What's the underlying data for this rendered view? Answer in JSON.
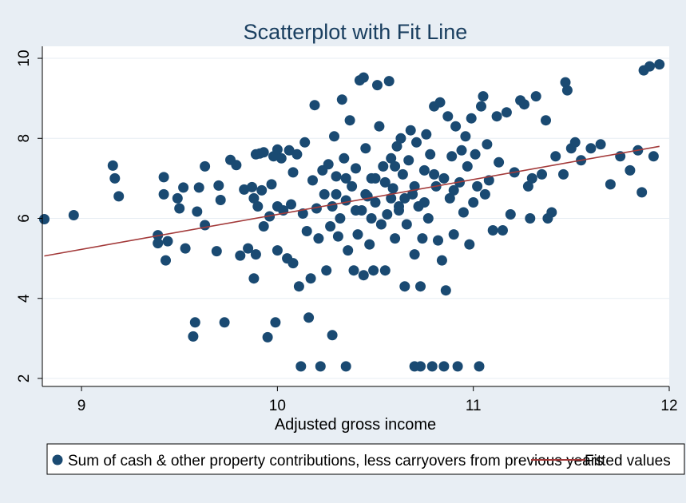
{
  "chart_data": {
    "type": "scatter",
    "title": "Scatterplot with Fit Line",
    "xlabel": "Adjusted gross income",
    "ylabel": "",
    "xlim": [
      8.8,
      12.0
    ],
    "ylim": [
      1.8,
      10.3
    ],
    "x_ticks": [
      9,
      10,
      11,
      12
    ],
    "y_ticks": [
      2,
      4,
      6,
      8,
      10
    ],
    "grid": "horizontal",
    "legend_position": "bottom",
    "colors": {
      "background": "#e8eef4",
      "plot_background": "#ffffff",
      "points": "#1a4a72",
      "fit_line": "#a33a3a",
      "grid": "#e7edf3"
    },
    "series": [
      {
        "name": "Sum of cash & other property contributions, less carryovers from previous years",
        "kind": "scatter",
        "points": [
          [
            8.81,
            5.98
          ],
          [
            8.96,
            6.08
          ],
          [
            9.16,
            7.32
          ],
          [
            9.17,
            7.0
          ],
          [
            9.19,
            6.55
          ],
          [
            9.39,
            5.58
          ],
          [
            9.39,
            5.38
          ],
          [
            9.42,
            7.03
          ],
          [
            9.42,
            6.6
          ],
          [
            9.43,
            4.95
          ],
          [
            9.44,
            5.43
          ],
          [
            9.49,
            6.5
          ],
          [
            9.5,
            6.25
          ],
          [
            9.52,
            6.77
          ],
          [
            9.53,
            5.25
          ],
          [
            9.57,
            3.05
          ],
          [
            9.58,
            3.4
          ],
          [
            9.59,
            6.17
          ],
          [
            9.6,
            6.77
          ],
          [
            9.63,
            7.3
          ],
          [
            9.63,
            5.83
          ],
          [
            9.69,
            5.18
          ],
          [
            9.7,
            6.82
          ],
          [
            9.71,
            6.46
          ],
          [
            9.73,
            3.4
          ],
          [
            9.76,
            7.46
          ],
          [
            9.79,
            7.33
          ],
          [
            9.81,
            5.07
          ],
          [
            9.83,
            6.72
          ],
          [
            9.85,
            5.25
          ],
          [
            9.87,
            6.78
          ],
          [
            9.88,
            4.5
          ],
          [
            9.88,
            6.5
          ],
          [
            9.89,
            7.6
          ],
          [
            9.89,
            5.1
          ],
          [
            9.9,
            6.3
          ],
          [
            9.91,
            7.62
          ],
          [
            9.92,
            6.7
          ],
          [
            9.93,
            7.65
          ],
          [
            9.93,
            5.8
          ],
          [
            9.95,
            3.03
          ],
          [
            9.96,
            6.05
          ],
          [
            9.97,
            6.85
          ],
          [
            9.98,
            7.55
          ],
          [
            9.99,
            3.4
          ],
          [
            10.0,
            7.72
          ],
          [
            10.0,
            6.3
          ],
          [
            10.0,
            5.2
          ],
          [
            10.02,
            7.5
          ],
          [
            10.03,
            6.2
          ],
          [
            10.05,
            5.0
          ],
          [
            10.06,
            7.7
          ],
          [
            10.07,
            6.35
          ],
          [
            10.08,
            7.15
          ],
          [
            10.08,
            4.88
          ],
          [
            10.1,
            7.6
          ],
          [
            10.11,
            4.3
          ],
          [
            10.12,
            2.3
          ],
          [
            10.13,
            6.12
          ],
          [
            10.14,
            7.9
          ],
          [
            10.15,
            5.68
          ],
          [
            10.16,
            3.52
          ],
          [
            10.17,
            4.5
          ],
          [
            10.18,
            6.95
          ],
          [
            10.19,
            8.83
          ],
          [
            10.2,
            6.25
          ],
          [
            10.21,
            5.5
          ],
          [
            10.22,
            2.3
          ],
          [
            10.23,
            7.2
          ],
          [
            10.24,
            6.6
          ],
          [
            10.25,
            4.7
          ],
          [
            10.26,
            7.35
          ],
          [
            10.27,
            5.8
          ],
          [
            10.28,
            6.3
          ],
          [
            10.28,
            3.08
          ],
          [
            10.29,
            8.05
          ],
          [
            10.3,
            7.05
          ],
          [
            10.31,
            5.55
          ],
          [
            10.32,
            6.0
          ],
          [
            10.33,
            8.97
          ],
          [
            10.34,
            7.5
          ],
          [
            10.35,
            6.45
          ],
          [
            10.35,
            2.3
          ],
          [
            10.36,
            5.2
          ],
          [
            10.37,
            8.45
          ],
          [
            10.38,
            6.8
          ],
          [
            10.39,
            4.7
          ],
          [
            10.4,
            7.25
          ],
          [
            10.41,
            5.6
          ],
          [
            10.42,
            9.45
          ],
          [
            10.43,
            6.2
          ],
          [
            10.44,
            9.52
          ],
          [
            10.44,
            4.58
          ],
          [
            10.45,
            7.75
          ],
          [
            10.46,
            6.55
          ],
          [
            10.47,
            5.35
          ],
          [
            10.48,
            7.0
          ],
          [
            10.49,
            4.7
          ],
          [
            10.5,
            6.4
          ],
          [
            10.51,
            9.33
          ],
          [
            10.52,
            8.3
          ],
          [
            10.53,
            5.85
          ],
          [
            10.54,
            7.3
          ],
          [
            10.55,
            4.7
          ],
          [
            10.56,
            6.1
          ],
          [
            10.57,
            9.43
          ],
          [
            10.58,
            7.5
          ],
          [
            10.59,
            6.75
          ],
          [
            10.6,
            5.5
          ],
          [
            10.61,
            7.8
          ],
          [
            10.62,
            6.3
          ],
          [
            10.63,
            8.0
          ],
          [
            10.64,
            7.1
          ],
          [
            10.65,
            4.3
          ],
          [
            10.66,
            5.85
          ],
          [
            10.67,
            7.45
          ],
          [
            10.68,
            8.2
          ],
          [
            10.69,
            6.6
          ],
          [
            10.7,
            5.1
          ],
          [
            10.7,
            2.3
          ],
          [
            10.71,
            7.9
          ],
          [
            10.72,
            6.3
          ],
          [
            10.73,
            4.3
          ],
          [
            10.73,
            2.3
          ],
          [
            10.74,
            5.5
          ],
          [
            10.75,
            7.2
          ],
          [
            10.76,
            8.1
          ],
          [
            10.77,
            6.0
          ],
          [
            10.78,
            7.6
          ],
          [
            10.79,
            2.3
          ],
          [
            10.8,
            8.8
          ],
          [
            10.81,
            6.8
          ],
          [
            10.82,
            5.45
          ],
          [
            10.83,
            8.9
          ],
          [
            10.84,
            4.95
          ],
          [
            10.85,
            7.0
          ],
          [
            10.85,
            2.3
          ],
          [
            10.86,
            4.2
          ],
          [
            10.87,
            8.55
          ],
          [
            10.88,
            6.5
          ],
          [
            10.89,
            7.55
          ],
          [
            10.9,
            5.6
          ],
          [
            10.91,
            8.3
          ],
          [
            10.92,
            2.3
          ],
          [
            10.93,
            6.9
          ],
          [
            10.94,
            7.7
          ],
          [
            10.95,
            6.15
          ],
          [
            10.96,
            8.05
          ],
          [
            10.97,
            7.3
          ],
          [
            10.98,
            5.35
          ],
          [
            10.99,
            8.5
          ],
          [
            11.0,
            6.4
          ],
          [
            11.01,
            7.6
          ],
          [
            11.02,
            6.8
          ],
          [
            11.03,
            2.3
          ],
          [
            11.04,
            8.8
          ],
          [
            11.05,
            9.05
          ],
          [
            11.06,
            6.6
          ],
          [
            11.07,
            7.85
          ],
          [
            11.08,
            6.95
          ],
          [
            11.1,
            5.7
          ],
          [
            11.12,
            8.55
          ],
          [
            11.13,
            7.4
          ],
          [
            11.15,
            5.7
          ],
          [
            11.17,
            8.65
          ],
          [
            11.19,
            6.1
          ],
          [
            11.21,
            7.15
          ],
          [
            11.24,
            8.95
          ],
          [
            11.26,
            8.85
          ],
          [
            11.28,
            6.8
          ],
          [
            11.29,
            6.0
          ],
          [
            11.3,
            7.0
          ],
          [
            11.32,
            9.05
          ],
          [
            11.35,
            7.1
          ],
          [
            11.37,
            8.45
          ],
          [
            11.38,
            6.0
          ],
          [
            11.4,
            6.15
          ],
          [
            11.42,
            7.55
          ],
          [
            11.46,
            7.1
          ],
          [
            11.47,
            9.4
          ],
          [
            11.48,
            9.2
          ],
          [
            11.5,
            7.75
          ],
          [
            11.52,
            7.9
          ],
          [
            11.55,
            7.45
          ],
          [
            11.6,
            7.75
          ],
          [
            11.65,
            7.85
          ],
          [
            11.7,
            6.85
          ],
          [
            11.75,
            7.55
          ],
          [
            11.8,
            7.2
          ],
          [
            11.84,
            7.7
          ],
          [
            11.87,
            9.7
          ],
          [
            11.9,
            9.8
          ],
          [
            11.92,
            7.55
          ],
          [
            11.95,
            9.85
          ],
          [
            11.86,
            6.65
          ],
          [
            10.6,
            7.3
          ],
          [
            10.45,
            6.6
          ],
          [
            10.55,
            6.9
          ],
          [
            10.65,
            6.5
          ],
          [
            10.4,
            6.2
          ],
          [
            10.5,
            7.0
          ],
          [
            10.7,
            6.8
          ],
          [
            10.3,
            6.6
          ],
          [
            10.8,
            7.1
          ],
          [
            10.9,
            6.7
          ],
          [
            10.35,
            7.0
          ],
          [
            10.62,
            6.2
          ],
          [
            10.48,
            6.0
          ],
          [
            10.58,
            6.5
          ],
          [
            10.75,
            6.4
          ]
        ]
      },
      {
        "name": "Fitted values",
        "kind": "line",
        "x": [
          8.81,
          11.95
        ],
        "y": [
          5.06,
          7.8
        ]
      }
    ]
  }
}
